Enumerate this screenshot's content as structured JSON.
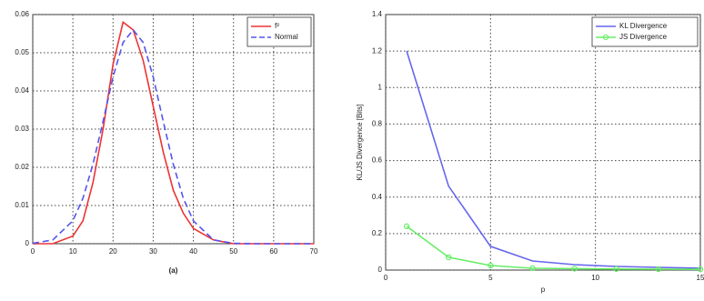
{
  "chart_data": [
    {
      "type": "line",
      "caption": "(a)",
      "x": [
        0,
        5,
        10,
        12.5,
        15,
        17.5,
        20,
        22.5,
        25,
        27.5,
        30,
        32.5,
        35,
        37.5,
        40,
        45,
        50,
        55,
        60,
        70
      ],
      "series": [
        {
          "name": "f²",
          "color": "#ee3333",
          "linestyle": "solid",
          "values": [
            0,
            0,
            0.002,
            0.006,
            0.016,
            0.03,
            0.047,
            0.058,
            0.056,
            0.048,
            0.036,
            0.024,
            0.014,
            0.008,
            0.004,
            0.001,
            0,
            0,
            0,
            0
          ]
        },
        {
          "name": "Normal",
          "color": "#5555ee",
          "linestyle": "dashed",
          "values": [
            0.0001,
            0.001,
            0.006,
            0.0119,
            0.0208,
            0.032,
            0.0437,
            0.0527,
            0.056,
            0.0527,
            0.0437,
            0.032,
            0.0208,
            0.0119,
            0.006,
            0.001,
            0.0001,
            0,
            0,
            0
          ]
        }
      ],
      "xlim": [
        0,
        70
      ],
      "xticks": [
        0,
        10,
        20,
        30,
        40,
        50,
        60,
        70
      ],
      "ylim": [
        0,
        0.06
      ],
      "yticks": [
        0,
        0.01,
        0.02,
        0.03,
        0.04,
        0.05,
        0.06
      ],
      "grid": true,
      "legend": "upper right"
    },
    {
      "type": "line",
      "x_label": "p",
      "y_label": "KL/JS Divergence [Bits]",
      "x": [
        1,
        3,
        5,
        7,
        9,
        11,
        13,
        15
      ],
      "series": [
        {
          "name": "KL Divergence",
          "color": "#6666ee",
          "linestyle": "solid",
          "marker": "none",
          "values": [
            1.2,
            0.46,
            0.13,
            0.05,
            0.03,
            0.02,
            0.015,
            0.01
          ]
        },
        {
          "name": "JS Divergence",
          "color": "#66ee66",
          "linestyle": "solid",
          "marker": "circle",
          "values": [
            0.24,
            0.07,
            0.025,
            0.01,
            0.008,
            0.006,
            0.005,
            0.004
          ]
        }
      ],
      "xlim": [
        0,
        15
      ],
      "xticks": [
        0,
        5,
        10,
        15
      ],
      "ylim": [
        0,
        1.4
      ],
      "yticks": [
        0,
        0.2,
        0.4,
        0.6,
        0.8,
        1,
        1.2,
        1.4
      ],
      "grid": true,
      "legend": "upper right"
    }
  ]
}
